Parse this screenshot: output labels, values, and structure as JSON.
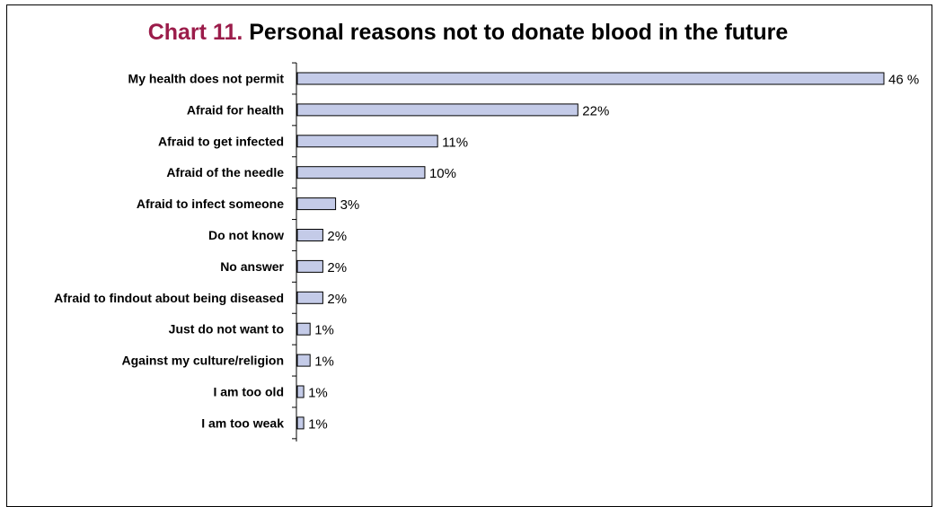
{
  "chart_data": {
    "type": "bar",
    "orientation": "horizontal",
    "title_prefix": "Chart 11.",
    "title": "Personal reasons not to donate blood in the future",
    "categories": [
      "My health does not permit",
      "Afraid for health",
      "Afraid to get infected",
      "Afraid of the needle",
      "Afraid to infect someone",
      "Do not know",
      "No answer",
      "Afraid to findout about being diseased",
      "Just do not want to",
      "Against my culture/religion",
      "I am too old",
      "I am too weak"
    ],
    "values": [
      46,
      22,
      11,
      10,
      3,
      2,
      2,
      2,
      1,
      1,
      0.5,
      0.5
    ],
    "value_labels": [
      "46 %",
      "22%",
      "11%",
      "10%",
      "3%",
      "2%",
      "2%",
      "2%",
      "1%",
      "1%",
      "1%",
      "1%"
    ],
    "xlim": [
      0,
      46
    ],
    "grid": false,
    "legend": "none",
    "colors": {
      "bar_fill": "#c4cbe8",
      "bar_stroke": "#000000",
      "title_accent": "#9b1c4a"
    }
  }
}
